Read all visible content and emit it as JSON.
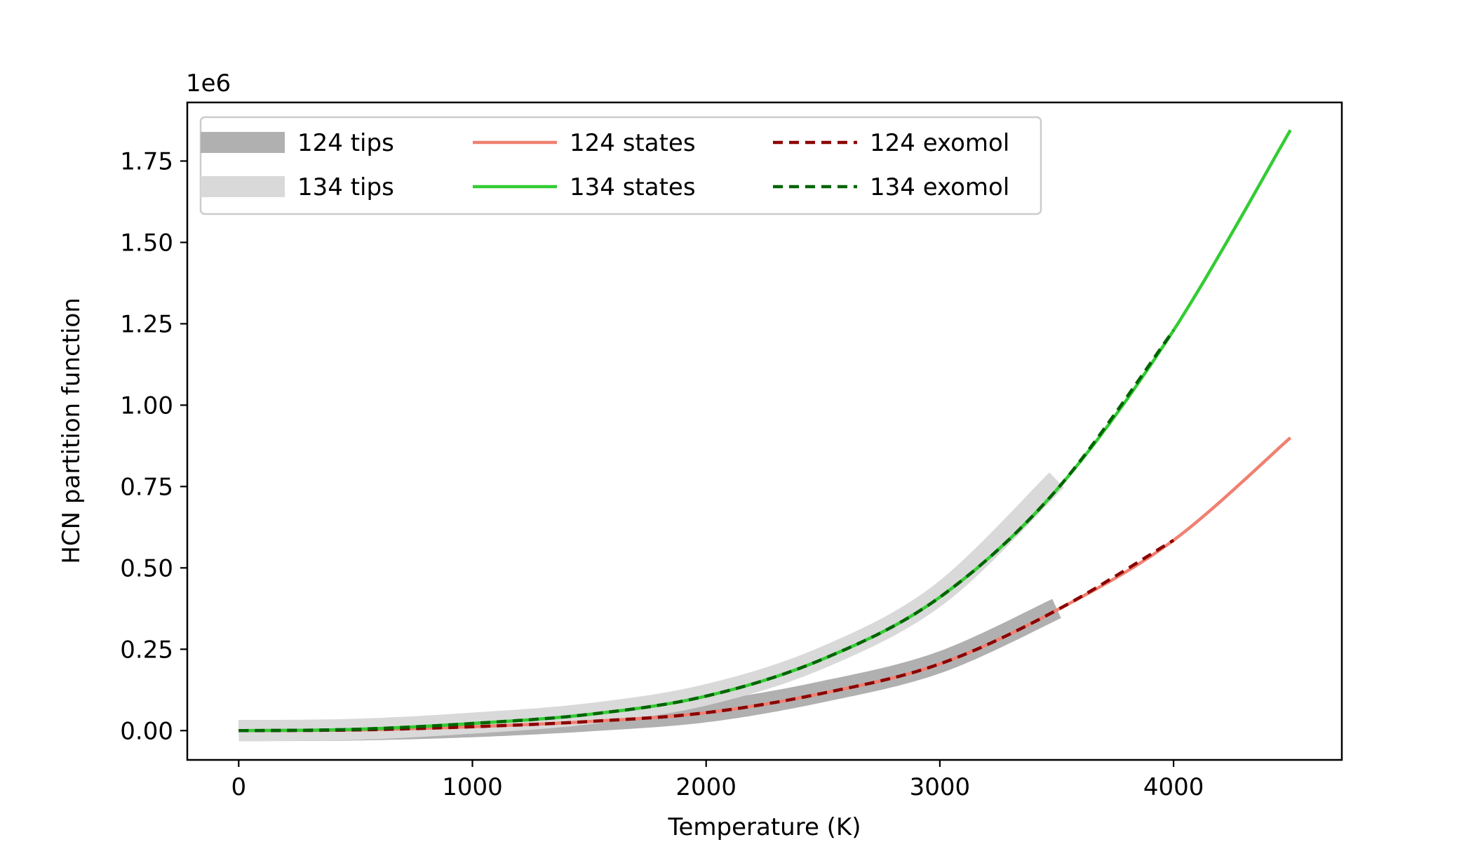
{
  "chart_data": {
    "type": "line",
    "xlabel": "Temperature (K)",
    "ylabel": "HCN partition function",
    "offset_text": "1e6",
    "xlim": [
      -220,
      4720
    ],
    "ylim": [
      -0.09,
      1.93
    ],
    "x_ticks": [
      0,
      1000,
      2000,
      3000,
      4000
    ],
    "x_tick_labels": [
      "0",
      "1000",
      "2000",
      "3000",
      "4000"
    ],
    "y_ticks": [
      0,
      0.25,
      0.5,
      0.75,
      1.0,
      1.25,
      1.5,
      1.75
    ],
    "y_tick_labels": [
      "0.00",
      "0.25",
      "0.50",
      "0.75",
      "1.00",
      "1.25",
      "1.50",
      "1.75"
    ],
    "grid": false,
    "legend_position": "upper-left",
    "series": [
      {
        "name": "124 tips",
        "style": "thick",
        "color": "#b0b0b0",
        "x": [
          0,
          500,
          1000,
          1500,
          2000,
          2500,
          3000,
          3500
        ],
        "y": [
          0.0,
          0.002,
          0.012,
          0.03,
          0.058,
          0.12,
          0.21,
          0.375
        ]
      },
      {
        "name": "134 tips",
        "style": "thick",
        "color": "#d9d9d9",
        "x": [
          0,
          500,
          1000,
          1500,
          2000,
          2500,
          3000,
          3500
        ],
        "y": [
          0.0,
          0.004,
          0.023,
          0.052,
          0.11,
          0.225,
          0.42,
          0.77
        ]
      },
      {
        "name": "124 states",
        "style": "solid",
        "color": "#f08070",
        "x": [
          0,
          500,
          1000,
          1500,
          2000,
          2500,
          3000,
          3500,
          4000,
          4500
        ],
        "y": [
          0.0,
          0.002,
          0.012,
          0.028,
          0.055,
          0.115,
          0.205,
          0.37,
          0.585,
          0.9
        ]
      },
      {
        "name": "134 states",
        "style": "solid",
        "color": "#33cc33",
        "x": [
          0,
          500,
          1000,
          1500,
          2000,
          2500,
          3000,
          3500,
          4000,
          4500
        ],
        "y": [
          0.0,
          0.004,
          0.022,
          0.05,
          0.106,
          0.22,
          0.41,
          0.74,
          1.23,
          1.845
        ]
      },
      {
        "name": "124 exomol",
        "style": "dashed",
        "color": "#8b0000",
        "x": [
          0,
          500,
          1000,
          1500,
          2000,
          2500,
          3000,
          3500,
          4000
        ],
        "y": [
          0.0,
          0.002,
          0.012,
          0.028,
          0.055,
          0.115,
          0.205,
          0.37,
          0.585
        ]
      },
      {
        "name": "134 exomol",
        "style": "dashed",
        "color": "#006400",
        "x": [
          0,
          500,
          1000,
          1500,
          2000,
          2500,
          3000,
          3500,
          4000
        ],
        "y": [
          0.0,
          0.004,
          0.022,
          0.05,
          0.106,
          0.22,
          0.41,
          0.74,
          1.23
        ]
      }
    ]
  }
}
